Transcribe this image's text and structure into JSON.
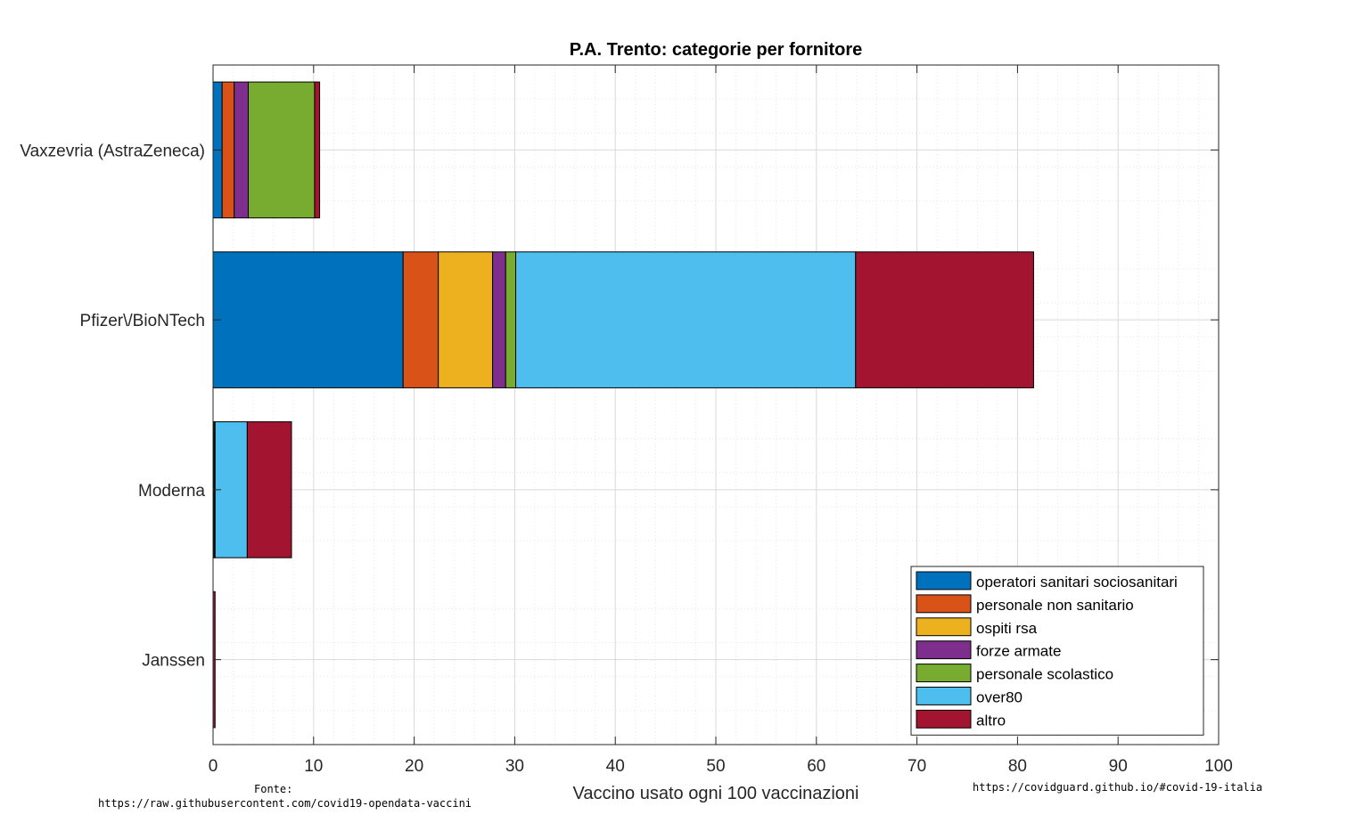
{
  "chart_data": {
    "type": "bar",
    "orientation": "horizontal",
    "stacked": true,
    "title": "P.A. Trento: categorie per fornitore",
    "xlabel": "Vaccino usato ogni 100 vaccinazioni",
    "ylabel": "",
    "xlim": [
      0,
      100
    ],
    "xticks": [
      "0",
      "10",
      "20",
      "30",
      "40",
      "50",
      "60",
      "70",
      "80",
      "90",
      "100"
    ],
    "grid": true,
    "legend_position": "bottom-right",
    "categories": [
      "Vaxzevria (AstraZeneca)",
      "Pfizer\\/BioNTech",
      "Moderna",
      "Janssen"
    ],
    "series": [
      {
        "name": "operatori sanitari sociosanitari",
        "color": "#0072BD",
        "values": [
          0.9,
          18.9,
          0.1,
          0.0
        ]
      },
      {
        "name": "personale non sanitario",
        "color": "#D95319",
        "values": [
          1.2,
          3.5,
          0.1,
          0.0
        ]
      },
      {
        "name": "ospiti rsa",
        "color": "#EDB120",
        "values": [
          0.0,
          5.4,
          0.0,
          0.0
        ]
      },
      {
        "name": "forze armate",
        "color": "#7E2F8E",
        "values": [
          1.4,
          1.3,
          0.0,
          0.0
        ]
      },
      {
        "name": "personale scolastico",
        "color": "#77AC30",
        "values": [
          6.6,
          1.0,
          0.0,
          0.0
        ]
      },
      {
        "name": "over80",
        "color": "#4DBEEE",
        "values": [
          0.0,
          33.8,
          3.2,
          0.0
        ]
      },
      {
        "name": "altro",
        "color": "#A2142F",
        "values": [
          0.5,
          17.7,
          4.4,
          0.2
        ]
      }
    ]
  },
  "footer": {
    "source_label": "Fonte:",
    "source_url": "https://raw.githubusercontent.com/covid19-opendata-vaccini",
    "site": "https://covidguard.github.io/#covid-19-italia"
  }
}
